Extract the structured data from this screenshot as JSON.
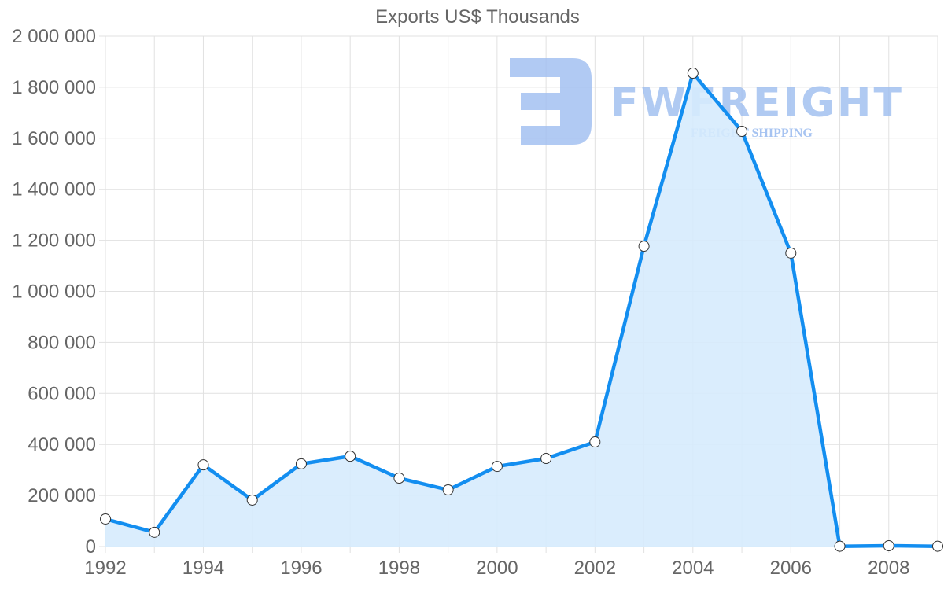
{
  "title": "Exports US$ Thousands",
  "watermark": {
    "brand": "FWFREIGHT",
    "tagline": "FREIGHT SHIPPING",
    "color": "#9dbdf0"
  },
  "colors": {
    "line": "#138ef0",
    "fill": "#d6ebfd",
    "grid": "#e1e1e1",
    "text": "#666666",
    "point_fill": "#ffffff",
    "point_stroke": "#333333"
  },
  "chart_data": {
    "type": "area",
    "title": "Exports US$ Thousands",
    "xlabel": "",
    "ylabel": "",
    "x": [
      1992,
      1993,
      1994,
      1995,
      1996,
      1997,
      1998,
      1999,
      2000,
      2001,
      2002,
      2003,
      2004,
      2005,
      2006,
      2007,
      2008,
      2009
    ],
    "series": [
      {
        "name": "Exports US$ Thousands",
        "values": [
          108000,
          56000,
          320000,
          182000,
          324000,
          354000,
          268000,
          222000,
          314000,
          345000,
          410000,
          1177000,
          1855000,
          1627000,
          1150000,
          1000,
          3000,
          1000
        ]
      }
    ],
    "ylim": [
      0,
      2000000
    ],
    "xlim": [
      1992,
      2009
    ],
    "y_ticks": [
      "0",
      "200 000",
      "400 000",
      "600 000",
      "800 000",
      "1 000 000",
      "1 200 000",
      "1 400 000",
      "1 600 000",
      "1 800 000",
      "2 000 000"
    ],
    "x_ticks": [
      "1992",
      "1994",
      "1996",
      "1998",
      "2000",
      "2002",
      "2004",
      "2006",
      "2008"
    ],
    "grid": true,
    "legend": "none"
  }
}
